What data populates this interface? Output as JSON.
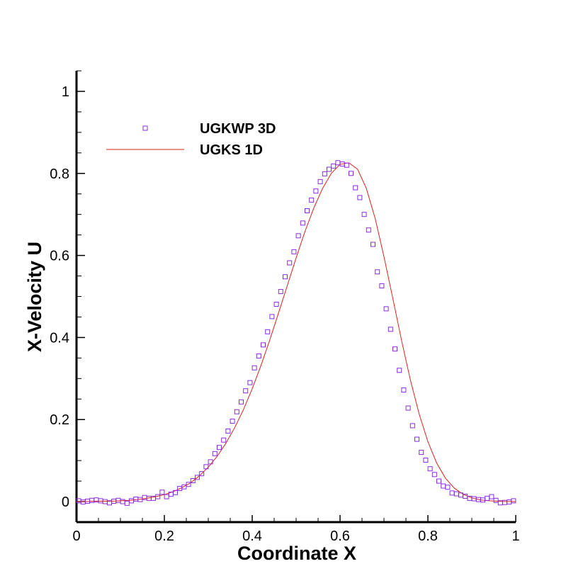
{
  "chart_data": {
    "type": "scatter",
    "xlabel": "Coordinate X",
    "ylabel": "X-Velocity U",
    "xlim": [
      0,
      1
    ],
    "ylim": [
      -0.05,
      1.05
    ],
    "xticks": [
      0,
      0.2,
      0.4,
      0.6,
      0.8,
      1
    ],
    "xtick_labels": [
      "0",
      "0.2",
      "0.4",
      "0.6",
      "0.8",
      "1"
    ],
    "yticks": [
      0,
      0.2,
      0.4,
      0.6,
      0.8,
      1
    ],
    "ytick_labels": [
      "0",
      "0.2",
      "0.4",
      "0.6",
      "0.8",
      "1"
    ],
    "grid": false,
    "legend_position": "top-left",
    "series": [
      {
        "name": "UGKWP 3D",
        "kind": "markers",
        "marker": "square",
        "color": "#8a2be2",
        "x": [
          0.005,
          0.015,
          0.025,
          0.035,
          0.045,
          0.055,
          0.065,
          0.075,
          0.085,
          0.095,
          0.105,
          0.115,
          0.125,
          0.135,
          0.145,
          0.155,
          0.165,
          0.175,
          0.185,
          0.195,
          0.205,
          0.215,
          0.225,
          0.235,
          0.245,
          0.255,
          0.265,
          0.275,
          0.285,
          0.295,
          0.305,
          0.315,
          0.325,
          0.335,
          0.345,
          0.355,
          0.365,
          0.375,
          0.385,
          0.395,
          0.405,
          0.415,
          0.425,
          0.435,
          0.445,
          0.455,
          0.465,
          0.475,
          0.485,
          0.495,
          0.505,
          0.515,
          0.525,
          0.535,
          0.545,
          0.555,
          0.565,
          0.575,
          0.585,
          0.595,
          0.605,
          0.615,
          0.625,
          0.635,
          0.645,
          0.655,
          0.665,
          0.675,
          0.685,
          0.695,
          0.705,
          0.715,
          0.725,
          0.735,
          0.745,
          0.755,
          0.765,
          0.775,
          0.785,
          0.795,
          0.805,
          0.815,
          0.825,
          0.835,
          0.845,
          0.855,
          0.865,
          0.875,
          0.885,
          0.895,
          0.905,
          0.915,
          0.925,
          0.935,
          0.945,
          0.955,
          0.965,
          0.975,
          0.985,
          0.995
        ],
        "y": [
          0.002,
          -0.001,
          0.001,
          0.003,
          0.004,
          0.002,
          0.0,
          -0.003,
          0.001,
          0.003,
          0.0,
          -0.004,
          0.002,
          0.006,
          0.005,
          0.01,
          0.008,
          0.008,
          0.012,
          0.023,
          0.012,
          0.018,
          0.022,
          0.032,
          0.036,
          0.042,
          0.051,
          0.059,
          0.068,
          0.085,
          0.097,
          0.117,
          0.132,
          0.15,
          0.172,
          0.196,
          0.219,
          0.243,
          0.27,
          0.29,
          0.326,
          0.355,
          0.382,
          0.414,
          0.451,
          0.481,
          0.512,
          0.548,
          0.582,
          0.609,
          0.648,
          0.679,
          0.709,
          0.735,
          0.757,
          0.78,
          0.799,
          0.81,
          0.818,
          0.826,
          0.823,
          0.82,
          0.8,
          0.765,
          0.741,
          0.7,
          0.662,
          0.627,
          0.56,
          0.526,
          0.47,
          0.42,
          0.372,
          0.32,
          0.272,
          0.228,
          0.185,
          0.152,
          0.12,
          0.101,
          0.08,
          0.066,
          0.05,
          0.038,
          0.035,
          0.021,
          0.019,
          0.016,
          0.013,
          0.008,
          0.007,
          0.005,
          0.004,
          0.008,
          0.012,
          0.003,
          -0.003,
          -0.002,
          -0.001,
          0.002
        ]
      },
      {
        "name": "UGKS 1D",
        "kind": "line",
        "color": "#e0201b",
        "x": [
          0,
          0.02,
          0.04,
          0.06,
          0.08,
          0.1,
          0.12,
          0.14,
          0.16,
          0.18,
          0.2,
          0.22,
          0.24,
          0.26,
          0.28,
          0.3,
          0.32,
          0.34,
          0.36,
          0.38,
          0.4,
          0.42,
          0.44,
          0.46,
          0.48,
          0.5,
          0.52,
          0.54,
          0.56,
          0.58,
          0.6,
          0.62,
          0.64,
          0.66,
          0.68,
          0.7,
          0.72,
          0.74,
          0.76,
          0.78,
          0.8,
          0.82,
          0.84,
          0.86,
          0.88,
          0.9,
          0.92,
          0.94,
          0.96,
          0.98,
          1
        ],
        "y": [
          0.0,
          0.0,
          0.001,
          0.001,
          0.001,
          0.002,
          0.003,
          0.005,
          0.008,
          0.012,
          0.017,
          0.024,
          0.034,
          0.046,
          0.063,
          0.084,
          0.11,
          0.142,
          0.18,
          0.224,
          0.275,
          0.332,
          0.394,
          0.46,
          0.527,
          0.594,
          0.658,
          0.715,
          0.763,
          0.8,
          0.822,
          0.826,
          0.81,
          0.763,
          0.69,
          0.597,
          0.496,
          0.393,
          0.297,
          0.214,
          0.146,
          0.094,
          0.057,
          0.033,
          0.018,
          0.009,
          0.004,
          0.002,
          0.001,
          0.0,
          0.0
        ]
      }
    ]
  }
}
